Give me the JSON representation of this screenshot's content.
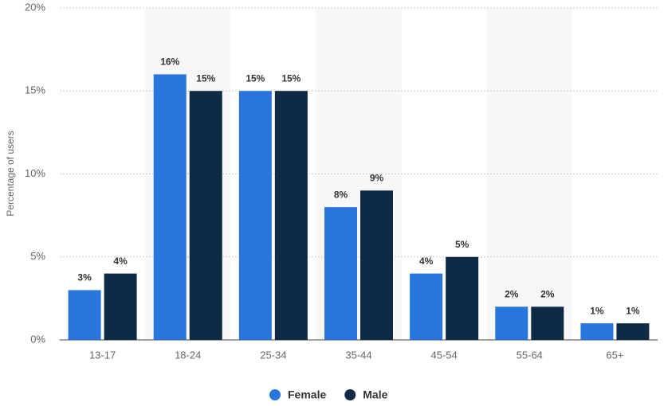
{
  "chart_data": {
    "type": "bar",
    "y_label": "Percentage of users",
    "categories": [
      "13-17",
      "18-24",
      "25-34",
      "35-44",
      "45-54",
      "55-64",
      "65+"
    ],
    "series": [
      {
        "name": "Female",
        "color": "#2876dd",
        "values": [
          3,
          16,
          15,
          8,
          4,
          2,
          1
        ],
        "value_labels": [
          "3%",
          "16%",
          "15%",
          "8%",
          "4%",
          "2%",
          "1%"
        ]
      },
      {
        "name": "Male",
        "color": "#0f2a45",
        "values": [
          4,
          15,
          15,
          9,
          5,
          2,
          1
        ],
        "value_labels": [
          "4%",
          "15%",
          "15%",
          "9%",
          "5%",
          "2%",
          "1%"
        ]
      }
    ],
    "ylim": [
      0,
      20
    ],
    "yticks": [
      {
        "value": 0,
        "label": "0%"
      },
      {
        "value": 5,
        "label": "5%"
      },
      {
        "value": 10,
        "label": "10%"
      },
      {
        "value": 15,
        "label": "15%"
      },
      {
        "value": 20,
        "label": "20%"
      }
    ],
    "grid": true,
    "legend": "bottom"
  }
}
